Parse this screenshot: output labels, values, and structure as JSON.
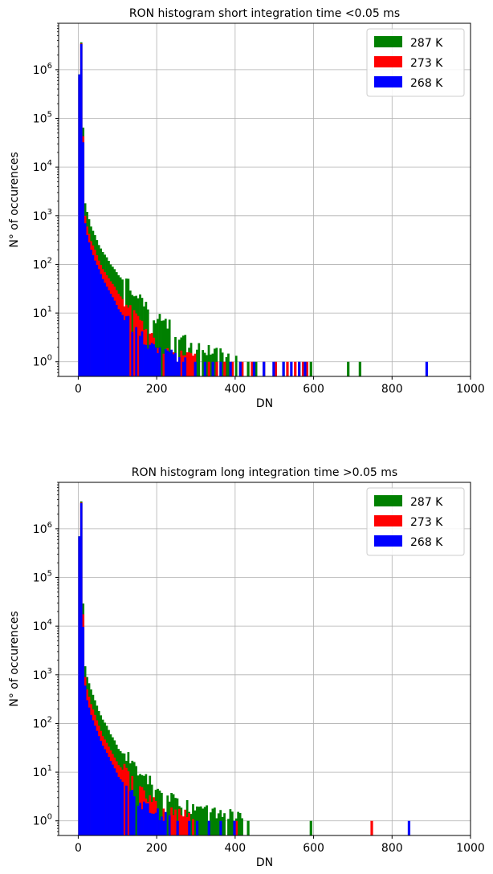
{
  "chart_data": [
    {
      "type": "bar",
      "title": "RON histogram short integration time <0.05 ms",
      "xlabel": "DN",
      "ylabel": "N° of occurences",
      "xlim": [
        -50,
        1000
      ],
      "ylim": [
        0.5,
        9000000
      ],
      "yscale": "log",
      "grid": true,
      "legend_position": "top-right",
      "x_ticks": [
        "0",
        "200",
        "400",
        "600",
        "800",
        "1000"
      ],
      "y_ticks": [
        {
          "mant": "10",
          "exp": "0"
        },
        {
          "mant": "10",
          "exp": "1"
        },
        {
          "mant": "10",
          "exp": "2"
        },
        {
          "mant": "10",
          "exp": "3"
        },
        {
          "mant": "10",
          "exp": "4"
        },
        {
          "mant": "10",
          "exp": "5"
        },
        {
          "mant": "10",
          "exp": "6"
        }
      ],
      "series": [
        {
          "name": "287 K",
          "color": "#008000",
          "profile": [
            [
              0,
              800000
            ],
            [
              3,
              4000000
            ],
            [
              6,
              3500000
            ],
            [
              9,
              300000
            ],
            [
              12,
              3000
            ],
            [
              15,
              1800
            ],
            [
              20,
              1200
            ],
            [
              30,
              600
            ],
            [
              40,
              400
            ],
            [
              50,
              250
            ],
            [
              60,
              180
            ],
            [
              70,
              140
            ],
            [
              80,
              100
            ],
            [
              90,
              80
            ],
            [
              100,
              60
            ],
            [
              120,
              40
            ],
            [
              140,
              25
            ],
            [
              160,
              15
            ],
            [
              180,
              10
            ],
            [
              200,
              7
            ],
            [
              230,
              5
            ],
            [
              260,
              3
            ],
            [
              290,
              2
            ],
            [
              320,
              1.6
            ],
            [
              350,
              1.4
            ],
            [
              380,
              1.2
            ],
            [
              400,
              1
            ]
          ],
          "sparse_x": [
            410,
            430,
            450,
            470,
            500,
            520,
            560,
            590,
            685,
            715
          ]
        },
        {
          "name": "273 K",
          "color": "#ff0000",
          "profile": [
            [
              0,
              700000
            ],
            [
              3,
              3800000
            ],
            [
              6,
              3300000
            ],
            [
              9,
              200000
            ],
            [
              12,
              2000
            ],
            [
              15,
              1000
            ],
            [
              20,
              600
            ],
            [
              30,
              300
            ],
            [
              40,
              200
            ],
            [
              50,
              120
            ],
            [
              60,
              80
            ],
            [
              70,
              60
            ],
            [
              80,
              45
            ],
            [
              90,
              35
            ],
            [
              100,
              25
            ],
            [
              120,
              15
            ],
            [
              140,
              8
            ],
            [
              160,
              5
            ],
            [
              180,
              3
            ],
            [
              200,
              2
            ],
            [
              230,
              1.5
            ],
            [
              260,
              1.2
            ],
            [
              300,
              1
            ]
          ],
          "sparse_x": [
            330,
            350,
            370,
            390,
            415,
            440,
            470,
            500,
            530,
            550,
            570,
            580
          ]
        },
        {
          "name": "268 K",
          "color": "#0000ff",
          "profile": [
            [
              0,
              800000
            ],
            [
              3,
              3500000
            ],
            [
              6,
              3300000
            ],
            [
              9,
              150000
            ],
            [
              12,
              1500
            ],
            [
              15,
              700
            ],
            [
              20,
              400
            ],
            [
              30,
              200
            ],
            [
              40,
              120
            ],
            [
              50,
              80
            ],
            [
              60,
              50
            ],
            [
              70,
              35
            ],
            [
              80,
              25
            ],
            [
              90,
              18
            ],
            [
              100,
              12
            ],
            [
              120,
              7
            ],
            [
              140,
              4
            ],
            [
              160,
              3
            ],
            [
              180,
              2
            ],
            [
              200,
              1.5
            ],
            [
              240,
              1.2
            ],
            [
              270,
              1
            ]
          ],
          "sparse_x": [
            295,
            320,
            340,
            360,
            385,
            410,
            445,
            470,
            495,
            520,
            540,
            560,
            575,
            885
          ]
        }
      ]
    },
    {
      "type": "bar",
      "title": "RON histogram long integration time >0.05 ms",
      "xlabel": "DN",
      "ylabel": "N° of occurences",
      "xlim": [
        -50,
        1000
      ],
      "ylim": [
        0.5,
        9000000
      ],
      "yscale": "log",
      "grid": true,
      "legend_position": "top-right",
      "x_ticks": [
        "0",
        "200",
        "400",
        "600",
        "800",
        "1000"
      ],
      "y_ticks": [
        {
          "mant": "10",
          "exp": "0"
        },
        {
          "mant": "10",
          "exp": "1"
        },
        {
          "mant": "10",
          "exp": "2"
        },
        {
          "mant": "10",
          "exp": "3"
        },
        {
          "mant": "10",
          "exp": "4"
        },
        {
          "mant": "10",
          "exp": "5"
        },
        {
          "mant": "10",
          "exp": "6"
        }
      ],
      "series": [
        {
          "name": "287 K",
          "color": "#008000",
          "profile": [
            [
              0,
              700000
            ],
            [
              3,
              4000000
            ],
            [
              6,
              3500000
            ],
            [
              9,
              100000
            ],
            [
              12,
              2500
            ],
            [
              15,
              1500
            ],
            [
              20,
              900
            ],
            [
              30,
              500
            ],
            [
              40,
              300
            ],
            [
              50,
              180
            ],
            [
              60,
              120
            ],
            [
              70,
              90
            ],
            [
              80,
              60
            ],
            [
              90,
              45
            ],
            [
              100,
              30
            ],
            [
              120,
              20
            ],
            [
              140,
              12
            ],
            [
              160,
              8
            ],
            [
              180,
              6
            ],
            [
              200,
              4
            ],
            [
              230,
              3
            ],
            [
              260,
              2
            ],
            [
              300,
              1.6
            ],
            [
              340,
              1.3
            ],
            [
              380,
              1.2
            ],
            [
              420,
              1
            ]
          ],
          "sparse_x": [
            430,
            590
          ]
        },
        {
          "name": "273 K",
          "color": "#ff0000",
          "profile": [
            [
              0,
              650000
            ],
            [
              3,
              3800000
            ],
            [
              6,
              3300000
            ],
            [
              9,
              60000
            ],
            [
              12,
              1500
            ],
            [
              15,
              900
            ],
            [
              20,
              500
            ],
            [
              30,
              250
            ],
            [
              40,
              150
            ],
            [
              50,
              90
            ],
            [
              60,
              55
            ],
            [
              70,
              40
            ],
            [
              80,
              28
            ],
            [
              90,
              20
            ],
            [
              100,
              14
            ],
            [
              120,
              9
            ],
            [
              140,
              6
            ],
            [
              160,
              4
            ],
            [
              180,
              2.5
            ],
            [
              200,
              1.8
            ],
            [
              230,
              1.4
            ],
            [
              260,
              1.2
            ],
            [
              300,
              1
            ]
          ],
          "sparse_x": [
            400,
            745
          ]
        },
        {
          "name": "268 K",
          "color": "#0000ff",
          "profile": [
            [
              0,
              700000
            ],
            [
              3,
              3500000
            ],
            [
              6,
              3300000
            ],
            [
              9,
              30000
            ],
            [
              12,
              1000
            ],
            [
              15,
              600
            ],
            [
              20,
              300
            ],
            [
              30,
              150
            ],
            [
              40,
              90
            ],
            [
              50,
              55
            ],
            [
              60,
              35
            ],
            [
              70,
              25
            ],
            [
              80,
              17
            ],
            [
              90,
              12
            ],
            [
              100,
              8
            ],
            [
              120,
              5
            ],
            [
              140,
              3
            ],
            [
              160,
              2
            ],
            [
              180,
              1.5
            ],
            [
              200,
              1.2
            ],
            [
              230,
              1
            ]
          ],
          "sparse_x": [
            250,
            280,
            300,
            330,
            360,
            395,
            840
          ]
        }
      ]
    }
  ]
}
